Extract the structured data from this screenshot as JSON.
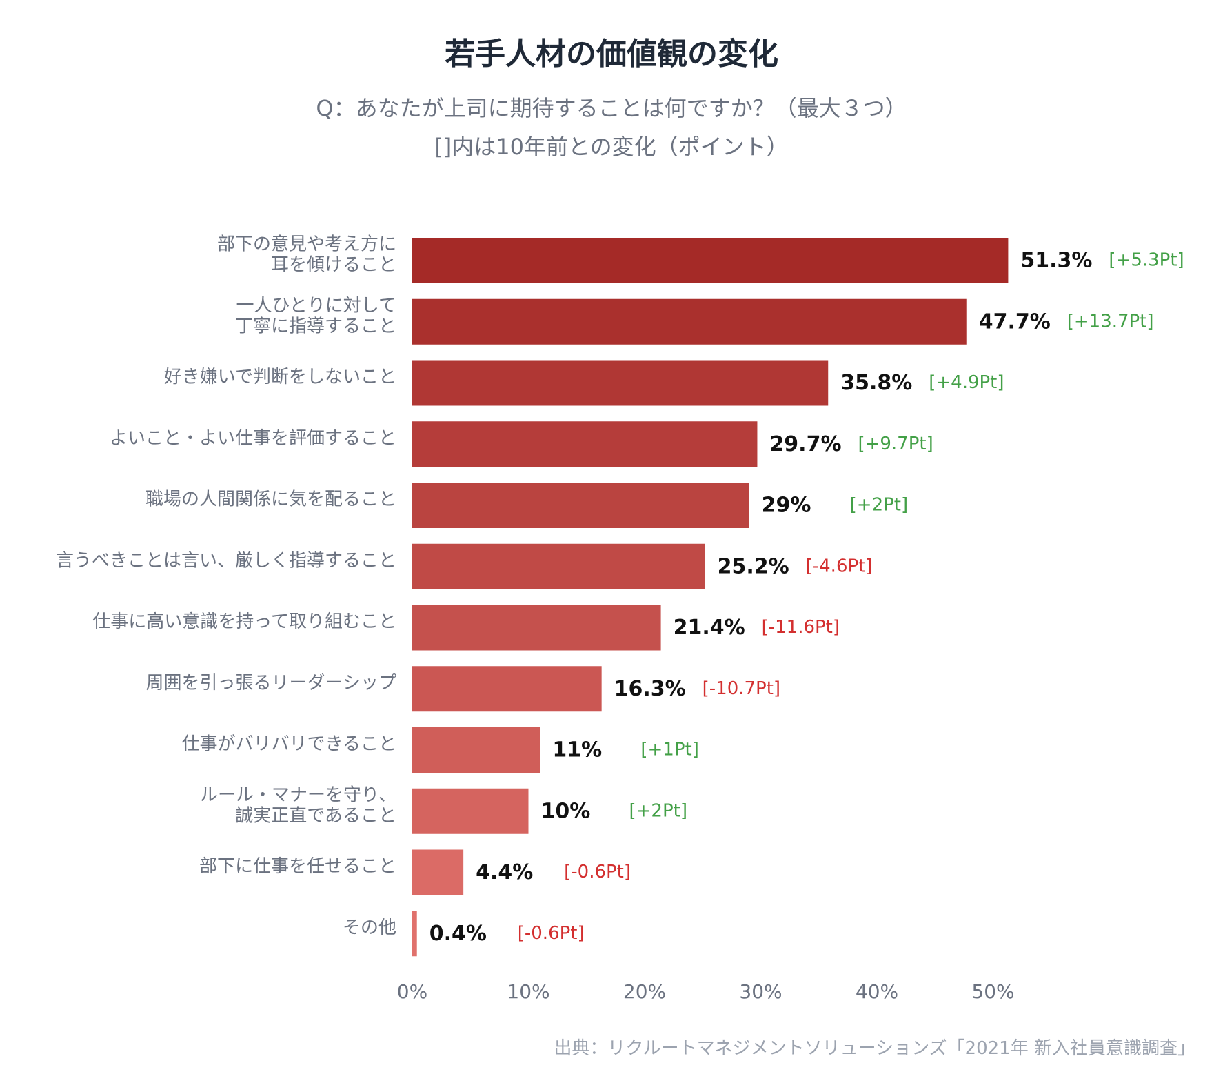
{
  "title": "若手人材の価値観の変化",
  "subtitle_lines": [
    "Q：あなたが上司に期待することは何ですか？（最大３つ）",
    "[]内は10年前との変化（ポイント）"
  ],
  "source": "出典：リクルートマネジメントソリューションズ「2021年 新入社員意識調査」",
  "colors": {
    "bar_darkest": "#a52a27",
    "bar_lightest": "#e0716c",
    "positive_change": "#43a047",
    "negative_change": "#d32f2f",
    "axis_text": "#6b7280",
    "category_text": "#6b7280",
    "value_text": "#111111"
  },
  "chart_data": {
    "type": "bar",
    "orientation": "horizontal",
    "categories": [
      [
        "部下の意見や考え方に",
        "耳を傾けること"
      ],
      [
        "一人ひとりに対して",
        "丁寧に指導すること"
      ],
      [
        "好き嫌いで判断をしないこと"
      ],
      [
        "よいこと・よい仕事を評価すること"
      ],
      [
        "職場の人間関係に気を配ること"
      ],
      [
        "言うべきことは言い、厳しく指導すること"
      ],
      [
        "仕事に高い意識を持って取り組むこと"
      ],
      [
        "周囲を引っ張るリーダーシップ"
      ],
      [
        "仕事がバリバリできること"
      ],
      [
        "ルール・マナーを守り、",
        "誠実正直であること"
      ],
      [
        "部下に仕事を任せること"
      ],
      [
        "その他"
      ]
    ],
    "values": [
      51.3,
      47.7,
      35.8,
      29.7,
      29,
      25.2,
      21.4,
      16.3,
      11,
      10,
      4.4,
      0.4
    ],
    "value_labels": [
      "51.3%",
      "47.7%",
      "35.8%",
      "29.7%",
      "29%",
      "25.2%",
      "21.4%",
      "16.3%",
      "11%",
      "10%",
      "4.4%",
      "0.4%"
    ],
    "changes": [
      5.3,
      13.7,
      4.9,
      9.7,
      2,
      -4.6,
      -11.6,
      -10.7,
      1,
      2,
      -0.6,
      -0.6
    ],
    "change_labels": [
      "[+5.3Pt]",
      "[+13.7Pt]",
      "[+4.9Pt]",
      "[+9.7Pt]",
      "[+2Pt]",
      "[-4.6Pt]",
      "[-11.6Pt]",
      "[-10.7Pt]",
      "[+1Pt]",
      "[+2Pt]",
      "[-0.6Pt]",
      "[-0.6Pt]"
    ],
    "xlim": [
      0,
      50
    ],
    "xticks": [
      0,
      10,
      20,
      30,
      40,
      50
    ],
    "xtick_labels": [
      "0%",
      "10%",
      "20%",
      "30%",
      "40%",
      "50%"
    ],
    "grid": false,
    "legend": "none"
  }
}
